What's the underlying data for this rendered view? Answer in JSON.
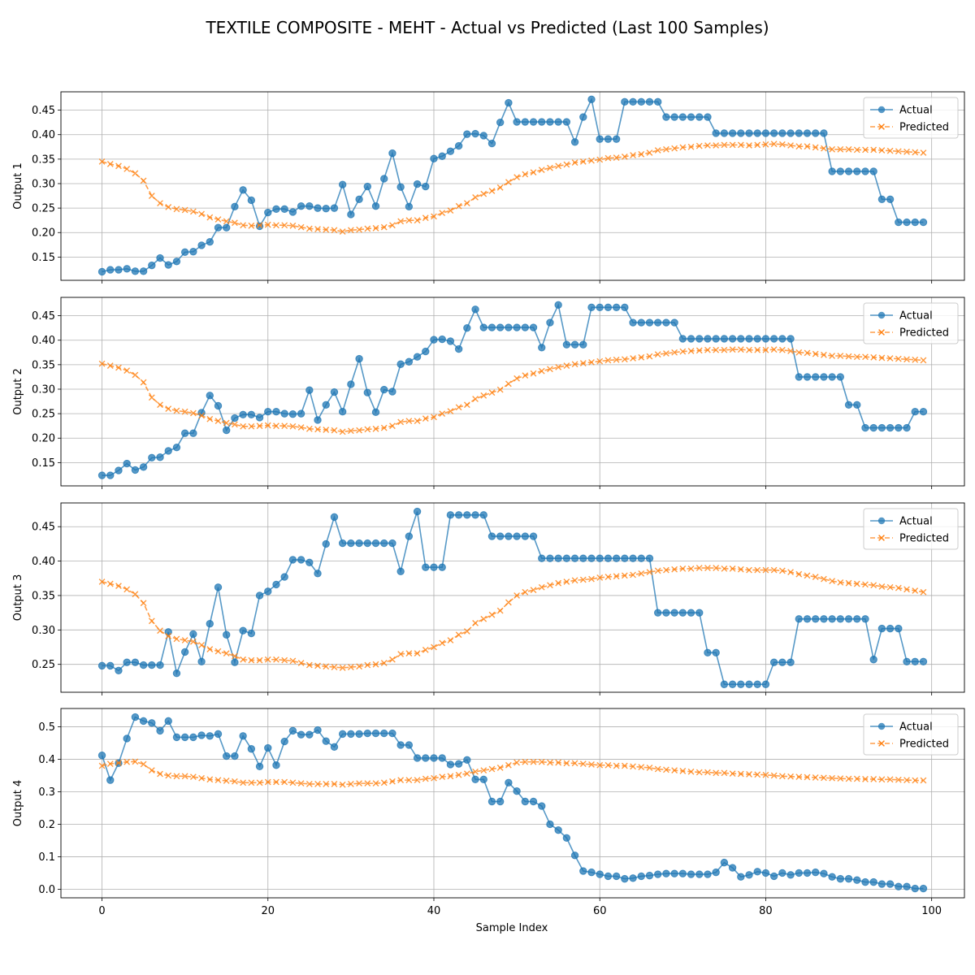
{
  "figure": {
    "title": "TEXTILE COMPOSITE - MEHT - Actual vs Predicted (Last 100 Samples)",
    "xlabel": "Sample Index"
  },
  "colors": {
    "actual": "#1f77b4",
    "predicted": "#ff7f0e",
    "grid": "#b0b0b0"
  },
  "chart_data": [
    {
      "type": "line",
      "ylabel": "Output 1",
      "xlim": [
        -4.95,
        103.95
      ],
      "ylim": [
        0.1025,
        0.4875
      ],
      "yticks": [
        0.15,
        0.2,
        0.25,
        0.3,
        0.35,
        0.4,
        0.45
      ],
      "xticks": [
        0,
        20,
        40,
        60,
        80,
        100
      ],
      "grid": true,
      "legend": "top-right",
      "series": [
        {
          "name": "Actual",
          "marker": "circle",
          "values": [
            0.12,
            0.124,
            0.124,
            0.126,
            0.121,
            0.121,
            0.133,
            0.148,
            0.134,
            0.141,
            0.16,
            0.161,
            0.174,
            0.181,
            0.21,
            0.21,
            0.253,
            0.287,
            0.266,
            0.213,
            0.241,
            0.248,
            0.248,
            0.242,
            0.254,
            0.254,
            0.25,
            0.249,
            0.25,
            0.298,
            0.237,
            0.268,
            0.294,
            0.254,
            0.31,
            0.362,
            0.293,
            0.253,
            0.299,
            0.294,
            0.351,
            0.356,
            0.366,
            0.377,
            0.401,
            0.402,
            0.398,
            0.382,
            0.425,
            0.465,
            0.426,
            0.426,
            0.426,
            0.426,
            0.426,
            0.426,
            0.426,
            0.385,
            0.436,
            0.472,
            0.391,
            0.391,
            0.391,
            0.467,
            0.467,
            0.467,
            0.467,
            0.467,
            0.436,
            0.436,
            0.436,
            0.436,
            0.436,
            0.436,
            0.403,
            0.403,
            0.403,
            0.403,
            0.403,
            0.403,
            0.403,
            0.403,
            0.403,
            0.403,
            0.403,
            0.403,
            0.403,
            0.403,
            0.325,
            0.325,
            0.325,
            0.325,
            0.325,
            0.325,
            0.268,
            0.268,
            0.221,
            0.221,
            0.221,
            0.221
          ]
        },
        {
          "name": "Predicted",
          "marker": "x",
          "values": [
            0.345,
            0.34,
            0.336,
            0.33,
            0.321,
            0.306,
            0.275,
            0.26,
            0.252,
            0.248,
            0.246,
            0.243,
            0.238,
            0.231,
            0.227,
            0.223,
            0.22,
            0.215,
            0.214,
            0.215,
            0.216,
            0.215,
            0.215,
            0.214,
            0.211,
            0.208,
            0.207,
            0.206,
            0.205,
            0.202,
            0.205,
            0.206,
            0.208,
            0.209,
            0.211,
            0.215,
            0.223,
            0.225,
            0.225,
            0.23,
            0.233,
            0.24,
            0.245,
            0.254,
            0.26,
            0.272,
            0.279,
            0.285,
            0.292,
            0.303,
            0.313,
            0.319,
            0.323,
            0.328,
            0.332,
            0.336,
            0.339,
            0.343,
            0.345,
            0.347,
            0.349,
            0.352,
            0.353,
            0.355,
            0.358,
            0.36,
            0.363,
            0.368,
            0.37,
            0.372,
            0.374,
            0.375,
            0.377,
            0.378,
            0.378,
            0.379,
            0.379,
            0.379,
            0.378,
            0.379,
            0.38,
            0.381,
            0.38,
            0.378,
            0.376,
            0.376,
            0.374,
            0.372,
            0.37,
            0.37,
            0.37,
            0.369,
            0.369,
            0.369,
            0.368,
            0.367,
            0.366,
            0.365,
            0.364,
            0.363
          ]
        }
      ]
    },
    {
      "type": "line",
      "ylabel": "Output 2",
      "xlim": [
        -4.95,
        103.95
      ],
      "ylim": [
        0.1025,
        0.4875
      ],
      "yticks": [
        0.15,
        0.2,
        0.25,
        0.3,
        0.35,
        0.4,
        0.45
      ],
      "xticks": [
        0,
        20,
        40,
        60,
        80,
        100
      ],
      "grid": true,
      "legend": "top-right",
      "series": [
        {
          "name": "Actual",
          "marker": "circle",
          "values": [
            0.124,
            0.124,
            0.134,
            0.148,
            0.135,
            0.141,
            0.16,
            0.161,
            0.174,
            0.181,
            0.21,
            0.21,
            0.252,
            0.287,
            0.266,
            0.216,
            0.241,
            0.248,
            0.248,
            0.242,
            0.254,
            0.254,
            0.25,
            0.249,
            0.25,
            0.298,
            0.237,
            0.268,
            0.294,
            0.254,
            0.31,
            0.362,
            0.293,
            0.253,
            0.299,
            0.295,
            0.351,
            0.356,
            0.366,
            0.377,
            0.401,
            0.402,
            0.398,
            0.382,
            0.425,
            0.463,
            0.426,
            0.426,
            0.426,
            0.426,
            0.426,
            0.426,
            0.426,
            0.385,
            0.436,
            0.472,
            0.391,
            0.391,
            0.391,
            0.467,
            0.467,
            0.467,
            0.467,
            0.467,
            0.436,
            0.436,
            0.436,
            0.436,
            0.436,
            0.436,
            0.403,
            0.403,
            0.403,
            0.403,
            0.403,
            0.403,
            0.403,
            0.403,
            0.403,
            0.403,
            0.403,
            0.403,
            0.403,
            0.403,
            0.325,
            0.325,
            0.325,
            0.325,
            0.325,
            0.325,
            0.268,
            0.268,
            0.221,
            0.221,
            0.221,
            0.221,
            0.221,
            0.221,
            0.254,
            0.254
          ]
        },
        {
          "name": "Predicted",
          "marker": "x",
          "values": [
            0.352,
            0.348,
            0.344,
            0.338,
            0.329,
            0.314,
            0.283,
            0.268,
            0.26,
            0.256,
            0.254,
            0.251,
            0.246,
            0.239,
            0.235,
            0.231,
            0.228,
            0.224,
            0.224,
            0.225,
            0.226,
            0.225,
            0.225,
            0.224,
            0.222,
            0.219,
            0.218,
            0.217,
            0.216,
            0.213,
            0.215,
            0.216,
            0.218,
            0.219,
            0.221,
            0.225,
            0.233,
            0.235,
            0.235,
            0.24,
            0.243,
            0.25,
            0.255,
            0.263,
            0.268,
            0.28,
            0.287,
            0.293,
            0.299,
            0.311,
            0.322,
            0.328,
            0.332,
            0.337,
            0.341,
            0.345,
            0.348,
            0.351,
            0.353,
            0.355,
            0.357,
            0.359,
            0.36,
            0.361,
            0.363,
            0.365,
            0.367,
            0.371,
            0.373,
            0.375,
            0.377,
            0.378,
            0.379,
            0.38,
            0.38,
            0.38,
            0.381,
            0.381,
            0.38,
            0.38,
            0.38,
            0.381,
            0.38,
            0.378,
            0.375,
            0.374,
            0.372,
            0.37,
            0.368,
            0.368,
            0.367,
            0.366,
            0.366,
            0.365,
            0.364,
            0.363,
            0.362,
            0.361,
            0.36,
            0.359
          ]
        }
      ]
    },
    {
      "type": "line",
      "ylabel": "Output 3",
      "xlim": [
        -4.95,
        103.95
      ],
      "ylim": [
        0.2095,
        0.4845
      ],
      "yticks": [
        0.25,
        0.3,
        0.35,
        0.4,
        0.45
      ],
      "xticks": [
        0,
        20,
        40,
        60,
        80,
        100
      ],
      "grid": true,
      "legend": "top-right",
      "series": [
        {
          "name": "Actual",
          "marker": "circle",
          "values": [
            0.248,
            0.248,
            0.241,
            0.253,
            0.253,
            0.249,
            0.249,
            0.249,
            0.297,
            0.237,
            0.268,
            0.294,
            0.254,
            0.309,
            0.362,
            0.293,
            0.253,
            0.299,
            0.295,
            0.35,
            0.356,
            0.366,
            0.377,
            0.402,
            0.402,
            0.398,
            0.382,
            0.425,
            0.464,
            0.426,
            0.426,
            0.426,
            0.426,
            0.426,
            0.426,
            0.426,
            0.385,
            0.436,
            0.472,
            0.391,
            0.391,
            0.391,
            0.467,
            0.467,
            0.467,
            0.467,
            0.467,
            0.436,
            0.436,
            0.436,
            0.436,
            0.436,
            0.436,
            0.404,
            0.404,
            0.404,
            0.404,
            0.404,
            0.404,
            0.404,
            0.404,
            0.404,
            0.404,
            0.404,
            0.404,
            0.404,
            0.404,
            0.325,
            0.325,
            0.325,
            0.325,
            0.325,
            0.325,
            0.267,
            0.267,
            0.221,
            0.221,
            0.221,
            0.221,
            0.221,
            0.221,
            0.253,
            0.253,
            0.253,
            0.316,
            0.316,
            0.316,
            0.316,
            0.316,
            0.316,
            0.316,
            0.316,
            0.316,
            0.257,
            0.302,
            0.302,
            0.302,
            0.254,
            0.254,
            0.254
          ]
        },
        {
          "name": "Predicted",
          "marker": "x",
          "values": [
            0.37,
            0.367,
            0.364,
            0.359,
            0.352,
            0.339,
            0.313,
            0.299,
            0.291,
            0.287,
            0.285,
            0.283,
            0.278,
            0.272,
            0.269,
            0.266,
            0.262,
            0.257,
            0.256,
            0.256,
            0.257,
            0.257,
            0.256,
            0.255,
            0.252,
            0.249,
            0.248,
            0.247,
            0.246,
            0.245,
            0.246,
            0.247,
            0.249,
            0.25,
            0.252,
            0.257,
            0.265,
            0.266,
            0.266,
            0.271,
            0.275,
            0.281,
            0.285,
            0.293,
            0.298,
            0.31,
            0.316,
            0.322,
            0.328,
            0.34,
            0.35,
            0.355,
            0.358,
            0.362,
            0.365,
            0.368,
            0.37,
            0.372,
            0.373,
            0.374,
            0.376,
            0.377,
            0.378,
            0.379,
            0.38,
            0.382,
            0.384,
            0.386,
            0.387,
            0.388,
            0.389,
            0.389,
            0.39,
            0.39,
            0.39,
            0.389,
            0.389,
            0.388,
            0.387,
            0.387,
            0.387,
            0.387,
            0.386,
            0.384,
            0.381,
            0.379,
            0.377,
            0.374,
            0.371,
            0.369,
            0.368,
            0.367,
            0.366,
            0.365,
            0.363,
            0.362,
            0.361,
            0.359,
            0.357,
            0.355
          ]
        }
      ]
    },
    {
      "type": "line",
      "ylabel": "Output 4",
      "xlim": [
        -4.95,
        103.95
      ],
      "ylim": [
        -0.0265,
        0.5565
      ],
      "yticks": [
        0.0,
        0.1,
        0.2,
        0.3,
        0.4,
        0.5
      ],
      "xticks": [
        0,
        20,
        40,
        60,
        80,
        100
      ],
      "xlabel": "Sample Index",
      "grid": true,
      "legend": "top-right",
      "series": [
        {
          "name": "Actual",
          "marker": "circle",
          "values": [
            0.412,
            0.336,
            0.388,
            0.464,
            0.53,
            0.518,
            0.512,
            0.488,
            0.518,
            0.468,
            0.468,
            0.468,
            0.474,
            0.472,
            0.478,
            0.41,
            0.41,
            0.472,
            0.432,
            0.378,
            0.435,
            0.382,
            0.455,
            0.488,
            0.476,
            0.476,
            0.49,
            0.456,
            0.438,
            0.478,
            0.478,
            0.478,
            0.48,
            0.48,
            0.48,
            0.48,
            0.444,
            0.444,
            0.404,
            0.404,
            0.404,
            0.404,
            0.384,
            0.386,
            0.398,
            0.338,
            0.338,
            0.27,
            0.27,
            0.328,
            0.302,
            0.27,
            0.27,
            0.256,
            0.2,
            0.182,
            0.158,
            0.104,
            0.056,
            0.052,
            0.046,
            0.04,
            0.04,
            0.032,
            0.034,
            0.04,
            0.042,
            0.046,
            0.048,
            0.048,
            0.048,
            0.046,
            0.046,
            0.046,
            0.052,
            0.082,
            0.066,
            0.038,
            0.044,
            0.054,
            0.05,
            0.04,
            0.05,
            0.044,
            0.05,
            0.05,
            0.052,
            0.048,
            0.038,
            0.032,
            0.032,
            0.028,
            0.022,
            0.022,
            0.016,
            0.016,
            0.008,
            0.008,
            0.002,
            0.002
          ]
        },
        {
          "name": "Predicted",
          "marker": "x",
          "values": [
            0.38,
            0.386,
            0.389,
            0.392,
            0.393,
            0.385,
            0.366,
            0.355,
            0.35,
            0.348,
            0.348,
            0.346,
            0.342,
            0.338,
            0.336,
            0.334,
            0.332,
            0.328,
            0.328,
            0.328,
            0.33,
            0.33,
            0.33,
            0.328,
            0.326,
            0.324,
            0.324,
            0.324,
            0.324,
            0.322,
            0.324,
            0.326,
            0.326,
            0.326,
            0.328,
            0.332,
            0.336,
            0.336,
            0.336,
            0.34,
            0.342,
            0.346,
            0.348,
            0.352,
            0.356,
            0.362,
            0.366,
            0.37,
            0.374,
            0.382,
            0.39,
            0.392,
            0.392,
            0.392,
            0.39,
            0.39,
            0.388,
            0.388,
            0.386,
            0.384,
            0.382,
            0.382,
            0.38,
            0.38,
            0.378,
            0.376,
            0.374,
            0.37,
            0.368,
            0.366,
            0.364,
            0.362,
            0.36,
            0.36,
            0.358,
            0.358,
            0.356,
            0.355,
            0.354,
            0.353,
            0.352,
            0.35,
            0.348,
            0.347,
            0.346,
            0.345,
            0.344,
            0.343,
            0.342,
            0.341,
            0.34,
            0.34,
            0.339,
            0.339,
            0.338,
            0.338,
            0.337,
            0.336,
            0.335,
            0.335
          ]
        }
      ]
    }
  ]
}
